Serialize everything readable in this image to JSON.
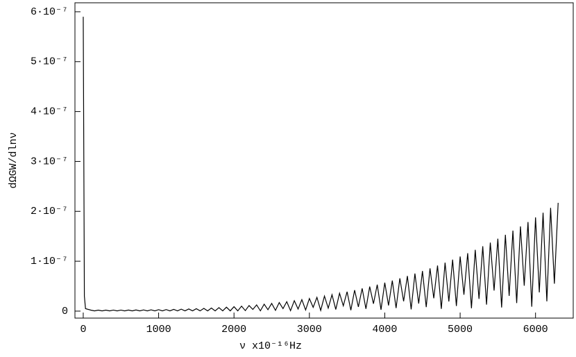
{
  "chart_data": {
    "type": "line",
    "xlabel": "ν x10⁻¹⁶Hz",
    "ylabel": "dΩGW/dlnν",
    "color": "#000000",
    "xlim": [
      -110,
      6500
    ],
    "ylim": [
      -1.4e-08,
      6.18e-07
    ],
    "xticks": [
      0,
      1000,
      2000,
      3000,
      4000,
      5000,
      6000
    ],
    "yticks": [
      {
        "value": 0,
        "label": "0"
      },
      {
        "value": 1e-07,
        "label": "1·10⁻⁷"
      },
      {
        "value": 2e-07,
        "label": "2·10⁻⁷"
      },
      {
        "value": 3e-07,
        "label": "3·10⁻⁷"
      },
      {
        "value": 4e-07,
        "label": "4·10⁻⁷"
      },
      {
        "value": 5e-07,
        "label": "5·10⁻⁷"
      },
      {
        "value": 6e-07,
        "label": "6·10⁻⁷"
      }
    ],
    "x": [
      0,
      15,
      30,
      100,
      150,
      200,
      250,
      300,
      350,
      400,
      450,
      500,
      550,
      600,
      650,
      700,
      750,
      800,
      850,
      900,
      950,
      1000,
      1050,
      1100,
      1150,
      1200,
      1250,
      1300,
      1350,
      1400,
      1450,
      1500,
      1550,
      1600,
      1650,
      1700,
      1750,
      1800,
      1850,
      1900,
      1950,
      2000,
      2050,
      2100,
      2150,
      2200,
      2250,
      2300,
      2350,
      2400,
      2450,
      2500,
      2550,
      2600,
      2650,
      2700,
      2750,
      2800,
      2850,
      2900,
      2950,
      3000,
      3050,
      3100,
      3150,
      3200,
      3250,
      3300,
      3350,
      3400,
      3450,
      3500,
      3550,
      3600,
      3650,
      3700,
      3750,
      3800,
      3850,
      3900,
      3950,
      4000,
      4050,
      4100,
      4150,
      4200,
      4250,
      4300,
      4350,
      4400,
      4450,
      4500,
      4550,
      4600,
      4650,
      4700,
      4750,
      4800,
      4850,
      4900,
      4950,
      5000,
      5050,
      5100,
      5150,
      5200,
      5250,
      5300,
      5350,
      5400,
      5450,
      5500,
      5550,
      5600,
      5650,
      5700,
      5750,
      5800,
      5850,
      5900,
      5950,
      6000,
      6050,
      6100,
      6150,
      6200,
      6250,
      6300
    ],
    "values": [
      5.9e-07,
      3e-08,
      5e-09,
      2e-09,
      5e-10,
      2e-09,
      5e-10,
      2e-09,
      5e-10,
      2.1e-09,
      5e-10,
      2.1e-09,
      5e-10,
      2.2e-09,
      5e-10,
      2.3e-09,
      5e-10,
      2.4e-09,
      5e-10,
      2.6e-09,
      5e-10,
      2.9e-09,
      5e-10,
      3.1e-09,
      5e-10,
      3.5e-09,
      5e-10,
      3.9e-09,
      5e-10,
      4.4e-09,
      5e-10,
      4.9e-09,
      5e-10,
      5.5e-09,
      5e-10,
      6.2e-09,
      5e-10,
      7e-09,
      5e-10,
      7.9e-09,
      5e-10,
      8.9e-09,
      5e-10,
      1e-08,
      1e-09,
      1.12e-08,
      3.4e-09,
      1.25e-08,
      6e-10,
      1.39e-08,
      2.8e-09,
      1.54e-08,
      1.5e-09,
      1.71e-08,
      5.1e-09,
      1.89e-08,
      9e-10,
      2.09e-08,
      4.2e-09,
      2.3e-08,
      2.3e-09,
      2.52e-08,
      7.6e-09,
      2.76e-08,
      1.4e-09,
      3.02e-08,
      6e-09,
      3.29e-08,
      3.3e-09,
      3.58e-08,
      1.07e-08,
      3.89e-08,
      1.9e-09,
      4.21e-08,
      8.4e-09,
      4.56e-08,
      4.6e-09,
      4.92e-08,
      1.48e-08,
      5.3e-08,
      2.7e-09,
      5.7e-08,
      1.14e-08,
      6.13e-08,
      6.1e-09,
      6.57e-08,
      1.97e-08,
      7.04e-08,
      3.5e-09,
      7.53e-08,
      1.51e-08,
      8.04e-08,
      8e-09,
      8.57e-08,
      2.57e-08,
      9.13e-08,
      4.6e-09,
      9.71e-08,
      1.94e-08,
      1.032e-07,
      1.03e-08,
      1.095e-07,
      3.29e-08,
      1.161e-07,
      5.8e-09,
      1.229e-07,
      2.46e-08,
      1.3e-07,
      1.3e-08,
      1.374e-07,
      4.12e-08,
      1.451e-07,
      7.3e-09,
      1.53e-07,
      3.06e-08,
      1.613e-07,
      1.61e-08,
      1.698e-07,
      5.09e-08,
      1.786e-07,
      8.9e-09,
      1.878e-07,
      3.76e-08,
      1.972e-07,
      1.97e-08,
      2.07e-07,
      5.5e-08,
      2.17e-07
    ]
  }
}
